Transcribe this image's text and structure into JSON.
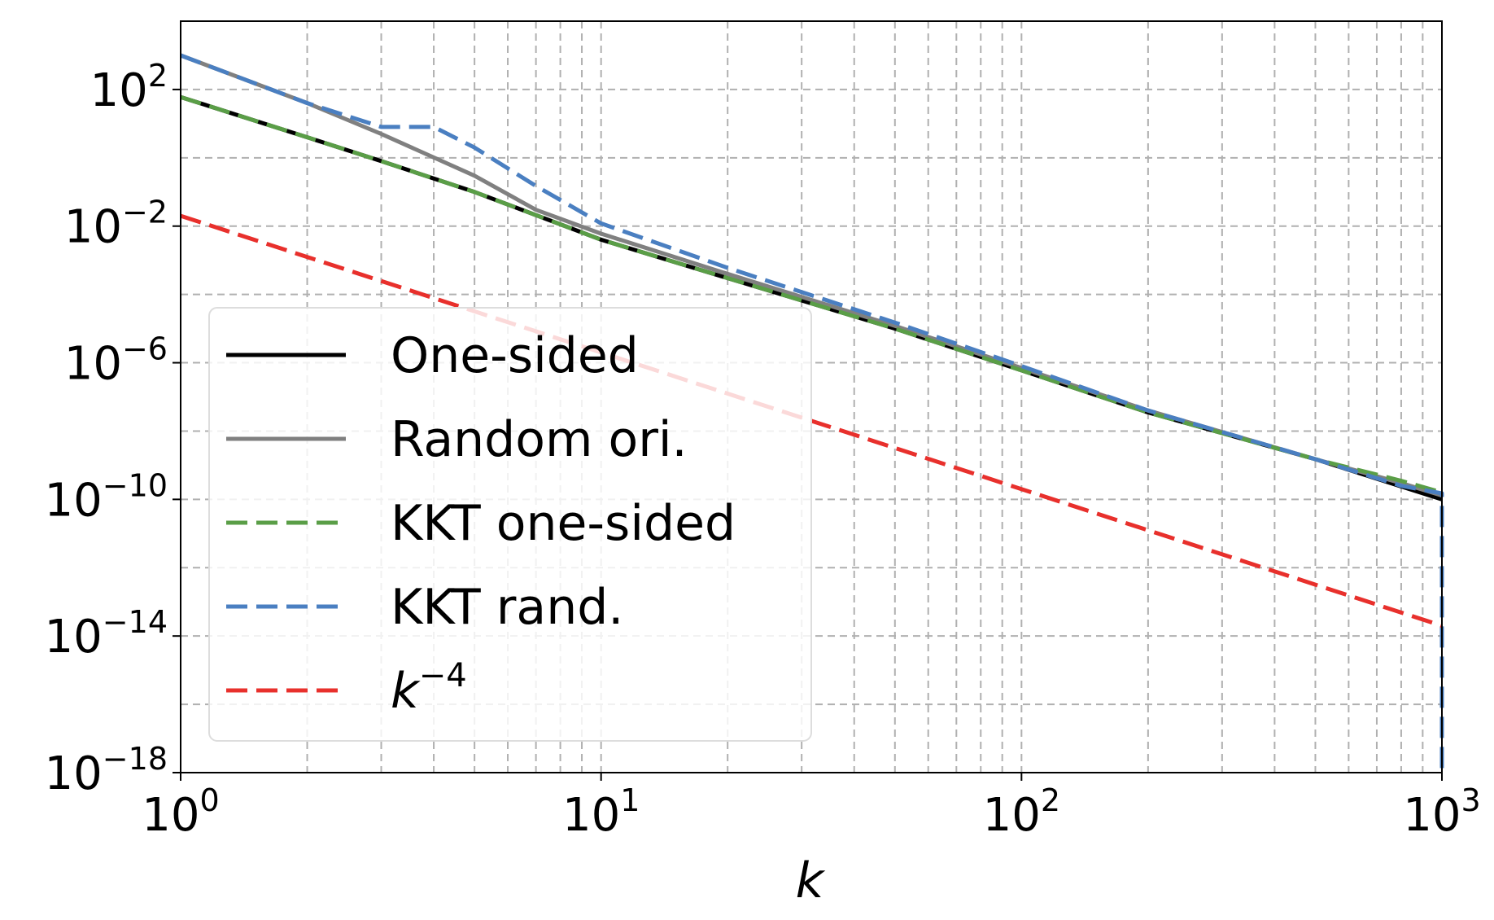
{
  "chart_data": {
    "type": "line",
    "title": "",
    "xlabel": "k",
    "ylabel": "",
    "xscale": "log",
    "yscale": "log",
    "xlim": [
      1,
      1000
    ],
    "ylim": [
      1e-18,
      10000.0
    ],
    "grid": true,
    "legend_position": "lower-left",
    "x_ticks": [
      {
        "value": 1,
        "base": "10",
        "exp": "0"
      },
      {
        "value": 10,
        "base": "10",
        "exp": "1"
      },
      {
        "value": 100,
        "base": "10",
        "exp": "2"
      },
      {
        "value": 1000,
        "base": "10",
        "exp": "3"
      }
    ],
    "y_ticks": [
      {
        "value": 100.0,
        "base": "10",
        "exp": "2"
      },
      {
        "value": 0.01,
        "base": "10",
        "exp": "−2"
      },
      {
        "value": 1e-06,
        "base": "10",
        "exp": "−6"
      },
      {
        "value": 1e-10,
        "base": "10",
        "exp": "−10"
      },
      {
        "value": 1e-14,
        "base": "10",
        "exp": "−14"
      },
      {
        "value": 1e-18,
        "base": "10",
        "exp": "−18"
      }
    ],
    "series": [
      {
        "name": "One-sided",
        "color": "#000000",
        "style": "solid",
        "points": [
          [
            1,
            60
          ],
          [
            2,
            4
          ],
          [
            3,
            0.8
          ],
          [
            5,
            0.1
          ],
          [
            10,
            0.004
          ],
          [
            20,
            0.0003
          ],
          [
            50,
            1e-05
          ],
          [
            100,
            6e-07
          ],
          [
            200,
            3.5e-08
          ],
          [
            500,
            1.5e-09
          ],
          [
            1000,
            1e-10
          ]
        ]
      },
      {
        "name": "Random ori.",
        "color": "#808080",
        "style": "solid",
        "points": [
          [
            1,
            1000
          ],
          [
            2,
            40
          ],
          [
            3,
            5
          ],
          [
            5,
            0.3
          ],
          [
            7,
            0.03
          ],
          [
            10,
            0.006
          ],
          [
            20,
            0.0004
          ],
          [
            50,
            1.2e-05
          ],
          [
            100,
            7e-07
          ],
          [
            200,
            4e-08
          ],
          [
            500,
            1.5e-09
          ],
          [
            800,
            3e-10
          ],
          [
            1000,
            1.3e-10
          ]
        ]
      },
      {
        "name": "KKT one-sided",
        "color": "#5a9e47",
        "style": "dashed",
        "points": [
          [
            1,
            60
          ],
          [
            2,
            4
          ],
          [
            3,
            0.8
          ],
          [
            5,
            0.1
          ],
          [
            10,
            0.004
          ],
          [
            20,
            0.0003
          ],
          [
            50,
            1e-05
          ],
          [
            100,
            6e-07
          ],
          [
            200,
            3.5e-08
          ],
          [
            500,
            1.5e-09
          ],
          [
            800,
            3.5e-10
          ],
          [
            1000,
            1.6e-10
          ]
        ]
      },
      {
        "name": "KKT rand.",
        "color": "#4a7fc1",
        "style": "dashed",
        "points": [
          [
            1,
            1000
          ],
          [
            2,
            40
          ],
          [
            3,
            8
          ],
          [
            4,
            8
          ],
          [
            5,
            2
          ],
          [
            7,
            0.15
          ],
          [
            10,
            0.012
          ],
          [
            20,
            0.0006
          ],
          [
            50,
            1.5e-05
          ],
          [
            100,
            8e-07
          ],
          [
            200,
            4e-08
          ],
          [
            500,
            1.5e-09
          ],
          [
            800,
            2.5e-10
          ],
          [
            1000,
            1.5e-10
          ],
          [
            1000,
            1e-18
          ]
        ]
      },
      {
        "name": "k^{-4}",
        "label_base": "k",
        "label_exp": "−4",
        "color": "#e8302c",
        "style": "dashed",
        "points": [
          [
            1,
            0.02
          ],
          [
            1000,
            2e-14
          ]
        ]
      }
    ]
  }
}
